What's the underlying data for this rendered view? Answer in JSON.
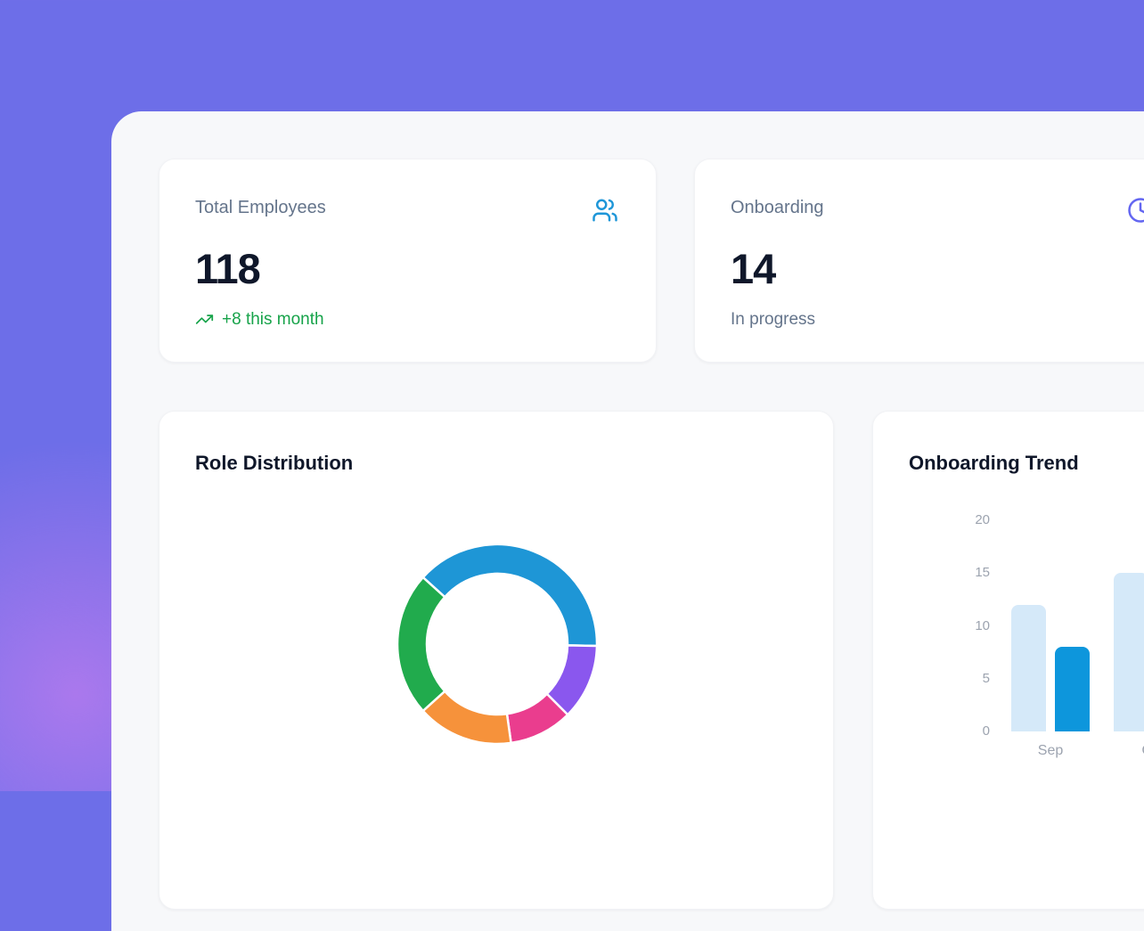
{
  "page": {
    "background_color": "#6D6EE8",
    "glow_color": "#DE80F0",
    "panel_color": "#F7F8FA",
    "card_color": "#FFFFFF"
  },
  "stats": [
    {
      "label": "Total Employees",
      "value": "118",
      "sub": "+8 this month",
      "icon": "users-icon",
      "icon_color": "#1E96D8",
      "sub_color": "#17A34A"
    },
    {
      "label": "Onboarding",
      "value": "14",
      "sub": "In progress",
      "icon": "clock-icon",
      "icon_color": "#6366F1",
      "sub_color": "#64748B"
    }
  ],
  "chart_data": [
    {
      "type": "pie",
      "variant": "donut",
      "title": "Role Distribution",
      "legend": "none",
      "start_angle_deg": -48,
      "segments": [
        {
          "name": "blue-segment",
          "color": "#1E96D6",
          "sweep_deg": 139,
          "percent": 38.6
        },
        {
          "name": "violet-segment",
          "color": "#8A57EE",
          "sweep_deg": 44,
          "percent": 12.2
        },
        {
          "name": "pink-segment",
          "color": "#EA3D8E",
          "sweep_deg": 37,
          "percent": 10.3
        },
        {
          "name": "orange-segment",
          "color": "#F6923B",
          "sweep_deg": 56,
          "percent": 15.6
        },
        {
          "name": "green-segment",
          "color": "#21AB4D",
          "sweep_deg": 84,
          "percent": 23.3
        }
      ]
    },
    {
      "type": "bar",
      "title": "Onboarding Trend",
      "categories": [
        "Sep",
        "Oct"
      ],
      "series": [
        {
          "name": "light-blue-series",
          "color": "#D5E9F9",
          "values": [
            12,
            15
          ]
        },
        {
          "name": "dark-blue-series",
          "color": "#0D96DC",
          "values": [
            8,
            null
          ]
        }
      ],
      "ylim": [
        0,
        20
      ],
      "yticks": [
        0,
        5,
        10,
        15,
        20
      ],
      "grid": false,
      "legend": "none"
    }
  ]
}
